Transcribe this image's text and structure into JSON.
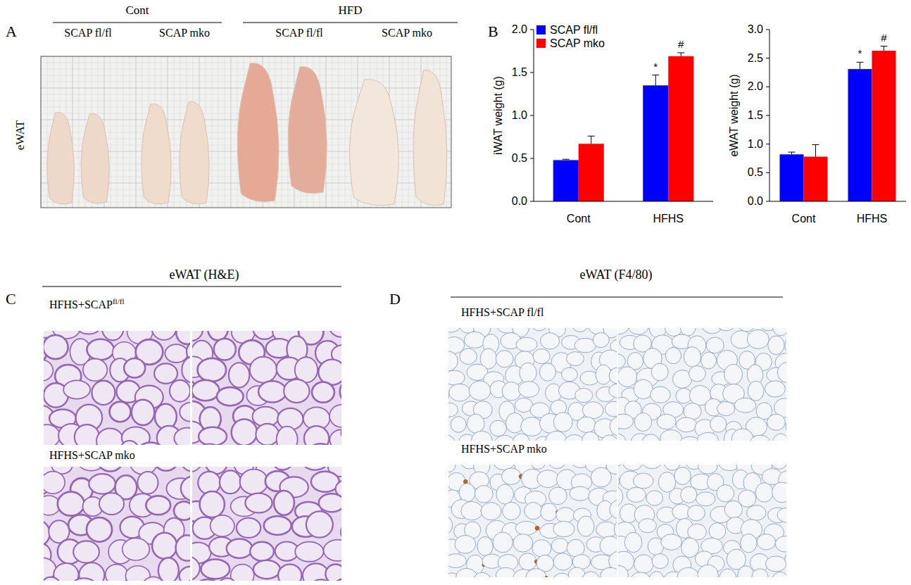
{
  "panels": {
    "A": {
      "label": "A",
      "tissue": "eWAT",
      "groups": [
        {
          "title": "Cont",
          "items": [
            "SCAP fl/fl",
            "SCAP mko"
          ]
        },
        {
          "title": "HFD",
          "items": [
            "SCAP fl/fl",
            "SCAP mko"
          ]
        }
      ]
    },
    "B": {
      "label": "B"
    },
    "C": {
      "label": "C",
      "title": "eWAT (H&E)",
      "rows": [
        {
          "main": "HFHS+SCAP",
          "sup": "fl/fl"
        },
        {
          "main": "HFHS+SCAP mko"
        }
      ]
    },
    "D": {
      "label": "D",
      "title": "eWAT (F4/80)",
      "rows": [
        "HFHS+SCAP fl/fl",
        "HFHS+SCAP mko"
      ]
    }
  },
  "chart_data": [
    {
      "type": "bar",
      "ylabel": "iWAT weight (g)",
      "categories": [
        "Cont",
        "HFHS"
      ],
      "series": [
        {
          "name": "SCAP fl/fl",
          "color": "#0000ff",
          "values": [
            0.48,
            1.35
          ],
          "errors": [
            0.01,
            0.12
          ],
          "annotations": [
            null,
            "*"
          ]
        },
        {
          "name": "SCAP mko",
          "color": "#ff0000",
          "values": [
            0.67,
            1.69
          ],
          "errors": [
            0.09,
            0.04
          ],
          "annotations": [
            null,
            "#"
          ]
        }
      ],
      "ylim": [
        0,
        2
      ],
      "yticks": [
        {
          "value": 0,
          "label": "0.0"
        },
        {
          "value": 0.5,
          "label": "0.5"
        },
        {
          "value": 1,
          "label": "1.0"
        },
        {
          "value": 1.5,
          "label": "1.5"
        },
        {
          "value": 2,
          "label": "2.0"
        }
      ],
      "grid": false,
      "legend": "upper-left"
    },
    {
      "type": "bar",
      "ylabel": "eWAT weight (g)",
      "categories": [
        "Cont",
        "HFHS"
      ],
      "series": [
        {
          "color": "#0000ff",
          "values": [
            0.82,
            2.31
          ],
          "errors": [
            0.04,
            0.12
          ],
          "annotations": [
            null,
            "*"
          ]
        },
        {
          "color": "#ff0000",
          "values": [
            0.78,
            2.63
          ],
          "errors": [
            0.21,
            0.08
          ],
          "annotations": [
            null,
            "#"
          ]
        }
      ],
      "ylim": [
        0,
        3
      ],
      "yticks": [
        {
          "value": 0,
          "label": "0.0"
        },
        {
          "value": 0.5,
          "label": "0.5"
        },
        {
          "value": 1,
          "label": "1.0"
        },
        {
          "value": 1.5,
          "label": "1.5"
        },
        {
          "value": 2,
          "label": "2.0"
        },
        {
          "value": 2.5,
          "label": "2.5"
        },
        {
          "value": 3,
          "label": "3.0"
        }
      ],
      "grid": false
    }
  ]
}
